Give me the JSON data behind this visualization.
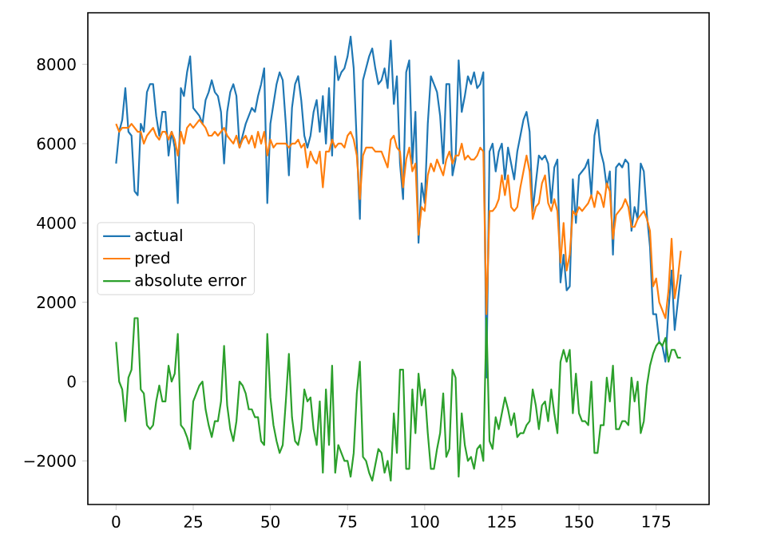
{
  "chart_data": {
    "type": "line",
    "x": [
      0,
      1,
      2,
      3,
      4,
      5,
      6,
      7,
      8,
      9,
      10,
      11,
      12,
      13,
      14,
      15,
      16,
      17,
      18,
      19,
      20,
      21,
      22,
      23,
      24,
      25,
      26,
      27,
      28,
      29,
      30,
      31,
      32,
      33,
      34,
      35,
      36,
      37,
      38,
      39,
      40,
      41,
      42,
      43,
      44,
      45,
      46,
      47,
      48,
      49,
      50,
      51,
      52,
      53,
      54,
      55,
      56,
      57,
      58,
      59,
      60,
      61,
      62,
      63,
      64,
      65,
      66,
      67,
      68,
      69,
      70,
      71,
      72,
      73,
      74,
      75,
      76,
      77,
      78,
      79,
      80,
      81,
      82,
      83,
      84,
      85,
      86,
      87,
      88,
      89,
      90,
      91,
      92,
      93,
      94,
      95,
      96,
      97,
      98,
      99,
      100,
      101,
      102,
      103,
      104,
      105,
      106,
      107,
      108,
      109,
      110,
      111,
      112,
      113,
      114,
      115,
      116,
      117,
      118,
      119,
      120,
      121,
      122,
      123,
      124,
      125,
      126,
      127,
      128,
      129,
      130,
      131,
      132,
      133,
      134,
      135,
      136,
      137,
      138,
      139,
      140,
      141,
      142,
      143,
      144,
      145,
      146,
      147,
      148,
      149,
      150,
      151,
      152,
      153,
      154,
      155,
      156,
      157,
      158,
      159,
      160,
      161,
      162,
      163,
      164,
      165,
      166,
      167,
      168,
      169,
      170,
      171,
      172,
      173,
      174,
      175,
      176,
      177,
      178,
      179,
      180,
      181,
      182,
      183
    ],
    "series": [
      {
        "name": "actual",
        "color": "#1f77b4",
        "values": [
          5500,
          6300,
          6600,
          7400,
          6300,
          6200,
          4800,
          4700,
          6500,
          6300,
          7300,
          7500,
          7500,
          6700,
          6200,
          6800,
          6800,
          5700,
          6300,
          5900,
          4500,
          7400,
          7200,
          7800,
          8200,
          6900,
          6800,
          6700,
          6500,
          7100,
          7300,
          7600,
          7300,
          7200,
          6800,
          5500,
          6800,
          7300,
          7500,
          7200,
          5900,
          6200,
          6500,
          6700,
          6900,
          6800,
          7200,
          7500,
          7900,
          4500,
          6500,
          7000,
          7500,
          7800,
          7600,
          6500,
          5200,
          6900,
          7500,
          7700,
          7100,
          6200,
          5900,
          6200,
          6800,
          7100,
          6300,
          7200,
          6000,
          7400,
          5700,
          8200,
          7600,
          7800,
          7900,
          8200,
          8700,
          7900,
          6000,
          4100,
          7600,
          7900,
          8200,
          8400,
          7900,
          7500,
          7600,
          7900,
          7400,
          8600,
          7000,
          7700,
          5500,
          4600,
          7800,
          8100,
          5500,
          6800,
          3500,
          5000,
          4500,
          6500,
          7700,
          7500,
          7300,
          6700,
          5500,
          7500,
          7500,
          5200,
          5600,
          8100,
          6800,
          7200,
          7700,
          7500,
          7800,
          7400,
          7500,
          7800,
          100,
          5800,
          6000,
          5300,
          5800,
          6000,
          5100,
          5900,
          5500,
          5100,
          5800,
          6200,
          6600,
          6800,
          6300,
          4300,
          5000,
          5700,
          5600,
          5700,
          5500,
          4500,
          5400,
          5600,
          2500,
          3200,
          2300,
          2400,
          5100,
          4000,
          5200,
          5300,
          5400,
          5600,
          4700,
          6200,
          6600,
          5800,
          5500,
          4900,
          5300,
          3200,
          5400,
          5500,
          5400,
          5600,
          5500,
          3800,
          4400,
          4100,
          5500,
          5300,
          4200,
          3400,
          1700,
          1700,
          1000,
          900,
          500,
          1800,
          2800,
          1300,
          2000,
          2700
        ]
      },
      {
        "name": "pred",
        "color": "#ff7f0e",
        "values": [
          6500,
          6300,
          6400,
          6400,
          6400,
          6500,
          6400,
          6300,
          6300,
          6000,
          6200,
          6300,
          6400,
          6200,
          6100,
          6300,
          6300,
          6100,
          6300,
          6100,
          5700,
          6300,
          6000,
          6400,
          6500,
          6400,
          6500,
          6600,
          6500,
          6400,
          6200,
          6200,
          6300,
          6200,
          6300,
          6400,
          6200,
          6100,
          6000,
          6200,
          5900,
          6100,
          6200,
          6000,
          6200,
          5900,
          6300,
          6000,
          6300,
          5700,
          6100,
          5900,
          6000,
          6000,
          6000,
          6000,
          5900,
          6000,
          6000,
          6100,
          5900,
          6000,
          5400,
          5800,
          5600,
          5500,
          5800,
          4900,
          5800,
          5800,
          6100,
          5900,
          6000,
          6000,
          5900,
          6200,
          6300,
          6100,
          5700,
          4600,
          5700,
          5900,
          5900,
          5900,
          5800,
          5800,
          5800,
          5600,
          5400,
          6100,
          6200,
          5900,
          5800,
          4900,
          5600,
          5900,
          5300,
          5500,
          3700,
          4400,
          4300,
          5200,
          5500,
          5300,
          5600,
          5400,
          5200,
          5600,
          5800,
          5500,
          5700,
          5700,
          6000,
          5600,
          5700,
          5600,
          5600,
          5700,
          5900,
          5800,
          1700,
          4300,
          4300,
          4400,
          4600,
          5200,
          4700,
          5200,
          4400,
          4300,
          4400,
          4900,
          5300,
          5700,
          5300,
          4100,
          4400,
          4500,
          5000,
          5200,
          4500,
          4300,
          4600,
          4300,
          3000,
          4000,
          2800,
          3200,
          4300,
          4200,
          4400,
          4300,
          4400,
          4500,
          4700,
          4400,
          4800,
          4700,
          4400,
          5000,
          4800,
          3600,
          4200,
          4300,
          4400,
          4600,
          4400,
          3900,
          3900,
          4100,
          4200,
          4300,
          4100,
          3800,
          2400,
          2600,
          2000,
          1800,
          1600,
          2300,
          3600,
          2100,
          2600,
          3300
        ]
      },
      {
        "name": "absolute error",
        "color": "#2ca02c",
        "values": [
          1000,
          0,
          -200,
          -1000,
          100,
          300,
          1600,
          1600,
          -200,
          -300,
          -1100,
          -1200,
          -1100,
          -500,
          -100,
          -500,
          -500,
          400,
          0,
          200,
          1200,
          -1100,
          -1200,
          -1400,
          -1700,
          -500,
          -300,
          -100,
          0,
          -700,
          -1100,
          -1400,
          -1000,
          -1000,
          -500,
          900,
          -600,
          -1200,
          -1500,
          -1000,
          0,
          -100,
          -300,
          -700,
          -700,
          -900,
          -900,
          -1500,
          -1600,
          1200,
          -400,
          -1100,
          -1500,
          -1800,
          -1600,
          -500,
          700,
          -900,
          -1500,
          -1600,
          -1200,
          -200,
          -500,
          -400,
          -1200,
          -1600,
          -500,
          -2300,
          -200,
          -1600,
          400,
          -2300,
          -1600,
          -1800,
          -2000,
          -2000,
          -2400,
          -1800,
          -300,
          500,
          -1900,
          -2000,
          -2300,
          -2500,
          -2100,
          -1700,
          -1800,
          -2300,
          -2000,
          -2500,
          -800,
          -1800,
          300,
          300,
          -2200,
          -2200,
          -200,
          -1300,
          200,
          -600,
          -200,
          -1300,
          -2200,
          -2200,
          -1700,
          -1300,
          -300,
          -1900,
          -1700,
          300,
          100,
          -2400,
          -800,
          -1600,
          -2000,
          -1900,
          -2200,
          -1700,
          -1600,
          -2000,
          1600,
          -1500,
          -1700,
          -900,
          -1200,
          -800,
          -400,
          -700,
          -1100,
          -800,
          -1400,
          -1300,
          -1300,
          -1100,
          -1000,
          -200,
          -600,
          -1200,
          -600,
          -500,
          -1000,
          -200,
          -800,
          -1300,
          500,
          800,
          500,
          800,
          -800,
          200,
          -800,
          -1000,
          -1000,
          -1100,
          0,
          -1800,
          -1800,
          -1100,
          -1100,
          100,
          -500,
          400,
          -1200,
          -1200,
          -1000,
          -1000,
          -1100,
          100,
          -500,
          0,
          -1300,
          -1000,
          -100,
          400,
          700,
          900,
          1000,
          900,
          1100,
          500,
          800,
          800,
          600,
          600
        ]
      }
    ],
    "xlim": [
      -9.15,
      192.15
    ],
    "ylim": [
      -3100,
      9300
    ],
    "xticks": [
      0,
      25,
      50,
      75,
      100,
      125,
      150,
      175
    ],
    "yticks": [
      {
        "value": -2000,
        "label": "−2000"
      },
      0,
      2000,
      4000,
      6000,
      8000
    ],
    "legend": "left"
  }
}
